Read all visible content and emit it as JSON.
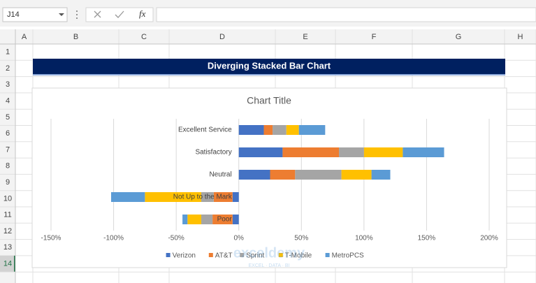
{
  "spreadsheet": {
    "name_box": "J14",
    "formula_icon": "fx",
    "columns": [
      "A",
      "B",
      "C",
      "D",
      "E",
      "F",
      "G",
      "H"
    ],
    "rows": [
      1,
      2,
      3,
      4,
      5,
      6,
      7,
      8,
      9,
      10,
      11,
      12,
      13,
      14
    ],
    "banner_title": "Diverging Stacked Bar Chart",
    "watermark": "exceldemy",
    "watermark_tagline": "EXCEL · DATA · BI"
  },
  "chart_data": {
    "type": "bar",
    "orientation": "horizontal",
    "stacked": true,
    "title": "Chart Title",
    "categories": [
      "Excellent Service",
      "Satisfactory",
      "Neutral",
      "Not Up to the Mark",
      "Poor"
    ],
    "series": [
      {
        "name": "Verizon",
        "color": "#4472c4",
        "values": [
          20,
          35,
          25,
          -5,
          -5
        ]
      },
      {
        "name": "AT&T",
        "color": "#ed7d31",
        "values": [
          7,
          45,
          20,
          -15,
          -16
        ]
      },
      {
        "name": "Sprint",
        "color": "#a5a5a5",
        "values": [
          11,
          20,
          37,
          -10,
          -9
        ]
      },
      {
        "name": "T-Mobile",
        "color": "#ffc000",
        "values": [
          10,
          31,
          24,
          -45,
          -11
        ]
      },
      {
        "name": "MetroPCS",
        "color": "#5b9bd5",
        "values": [
          21,
          33,
          15,
          -27,
          -4
        ]
      }
    ],
    "xlim": [
      -150,
      200
    ],
    "xticks": [
      {
        "value": -150,
        "label": "-150%"
      },
      {
        "value": -100,
        "label": "-100%"
      },
      {
        "value": -50,
        "label": "-50%"
      },
      {
        "value": 0,
        "label": "0%"
      },
      {
        "value": 50,
        "label": "50%"
      },
      {
        "value": 100,
        "label": "100%"
      },
      {
        "value": 150,
        "label": "150%"
      },
      {
        "value": 200,
        "label": "200%"
      }
    ],
    "grid": true,
    "legend": "bottom"
  }
}
